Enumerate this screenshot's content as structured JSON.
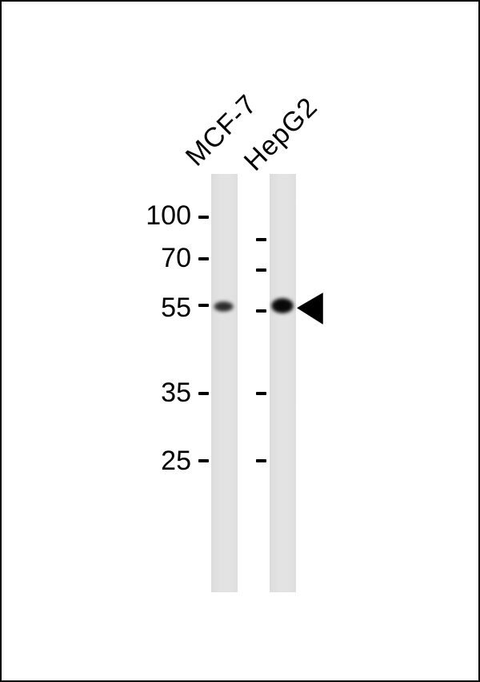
{
  "blot": {
    "type": "western-blot",
    "lanes": [
      {
        "label": "MCF-7",
        "band_kda": 55,
        "band_intensity": "medium"
      },
      {
        "label": "HepG2",
        "band_kda": 55,
        "band_intensity": "strong",
        "annotated_with_arrow": true
      }
    ],
    "markers": [
      {
        "label": "100"
      },
      {
        "label": "70"
      },
      {
        "label": "55"
      },
      {
        "label": "35"
      },
      {
        "label": "25"
      }
    ],
    "annotation": {
      "arrow_icon": "left-pointing-solid-triangle",
      "points_to_kda": "55"
    },
    "colors": {
      "background": "#ffffff",
      "border": "#000000",
      "lane_background": "#e1e1e1",
      "band_strong": "#0d0d0d",
      "band_medium": "#303030",
      "ink": "#000000"
    }
  }
}
